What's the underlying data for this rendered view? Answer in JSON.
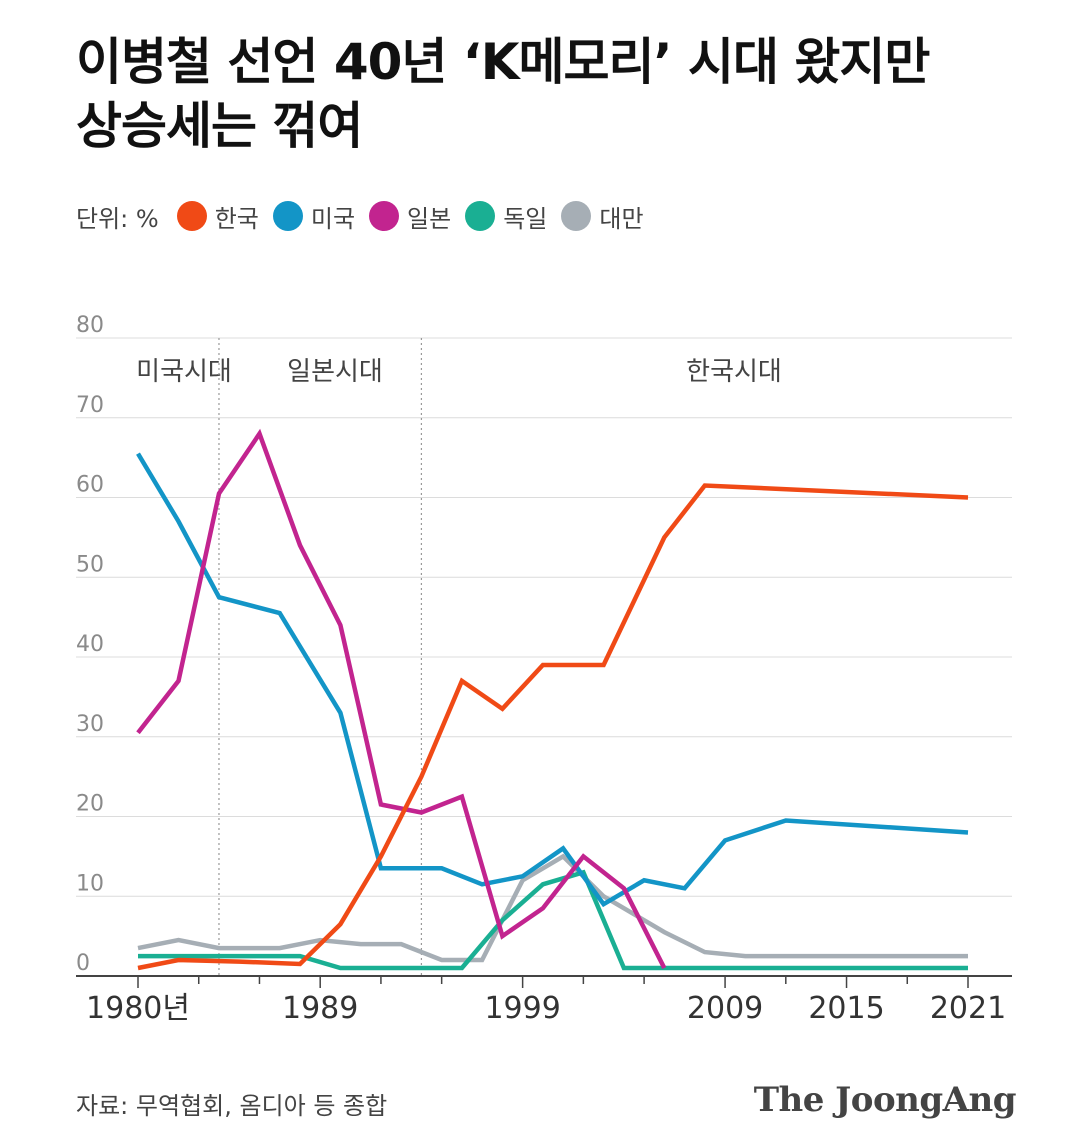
{
  "title": {
    "line1": "이병철 선언 40년 ‘K메모리’ 시대 왔지만",
    "line2": "상승세는 꺾여"
  },
  "legend": {
    "unit": "단위: %"
  },
  "source": "자료: 무역협회, 옴디아 등 종합",
  "brand": "The JoongAng",
  "chart_data": {
    "type": "line",
    "ylim": [
      0,
      80
    ],
    "yticks": [
      0,
      10,
      20,
      30,
      40,
      50,
      60,
      70,
      80
    ],
    "xlim": [
      1980,
      2021
    ],
    "xticks": [
      {
        "x": 1980,
        "label": "1980년"
      },
      {
        "x": 1989,
        "label": "1989"
      },
      {
        "x": 1999,
        "label": "1999"
      },
      {
        "x": 2009,
        "label": "2009"
      },
      {
        "x": 2015,
        "label": "2015"
      },
      {
        "x": 2021,
        "label": "2021"
      }
    ],
    "minor_ticks": [
      1983,
      1986,
      1992,
      1995,
      2002,
      2005,
      2012,
      2018
    ],
    "eras": [
      {
        "label": "미국시대",
        "from": 1980,
        "to": 1984
      },
      {
        "label": "일본시대",
        "from": 1984,
        "to": 1994
      },
      {
        "label": "한국시대",
        "from": 1994,
        "to": 2021
      }
    ],
    "grid": true,
    "legend_position": "top",
    "series": [
      {
        "name": "한국",
        "color": "#f04a16",
        "points": [
          [
            1980,
            1
          ],
          [
            1982,
            2
          ],
          [
            1985,
            1.8
          ],
          [
            1988,
            1.5
          ],
          [
            1990,
            6.5
          ],
          [
            1992,
            15
          ],
          [
            1994,
            25
          ],
          [
            1996,
            37
          ],
          [
            1998,
            33.5
          ],
          [
            2000,
            39
          ],
          [
            2003,
            39
          ],
          [
            2006,
            55
          ],
          [
            2008,
            61.5
          ],
          [
            2021,
            60
          ]
        ]
      },
      {
        "name": "미국",
        "color": "#1395c7",
        "points": [
          [
            1980,
            65.5
          ],
          [
            1982,
            57
          ],
          [
            1984,
            47.5
          ],
          [
            1987,
            45.5
          ],
          [
            1990,
            33
          ],
          [
            1992,
            13.5
          ],
          [
            1995,
            13.5
          ],
          [
            1997,
            11.5
          ],
          [
            1999,
            12.5
          ],
          [
            2001,
            16
          ],
          [
            2003,
            9
          ],
          [
            2005,
            12
          ],
          [
            2007,
            11
          ],
          [
            2009,
            17
          ],
          [
            2012,
            19.5
          ],
          [
            2021,
            18
          ]
        ]
      },
      {
        "name": "일본",
        "color": "#c2248f",
        "points": [
          [
            1980,
            30.5
          ],
          [
            1982,
            37
          ],
          [
            1984,
            60.5
          ],
          [
            1986,
            68
          ],
          [
            1988,
            54
          ],
          [
            1990,
            44
          ],
          [
            1992,
            21.5
          ],
          [
            1994,
            20.5
          ],
          [
            1996,
            22.5
          ],
          [
            1998,
            5
          ],
          [
            2000,
            8.5
          ],
          [
            2002,
            15
          ],
          [
            2004,
            11
          ],
          [
            2006,
            1
          ]
        ]
      },
      {
        "name": "독일",
        "color": "#1aaf93",
        "points": [
          [
            1980,
            2.5
          ],
          [
            1982,
            2.5
          ],
          [
            1985,
            2.5
          ],
          [
            1988,
            2.5
          ],
          [
            1990,
            1
          ],
          [
            1992,
            1
          ],
          [
            1994,
            1
          ],
          [
            1996,
            1
          ],
          [
            1998,
            7
          ],
          [
            2000,
            11.5
          ],
          [
            2002,
            13
          ],
          [
            2004,
            1
          ],
          [
            2021,
            1
          ]
        ]
      },
      {
        "name": "대만",
        "color": "#a6aeb5",
        "points": [
          [
            1980,
            3.5
          ],
          [
            1982,
            4.5
          ],
          [
            1984,
            3.5
          ],
          [
            1987,
            3.5
          ],
          [
            1989,
            4.5
          ],
          [
            1991,
            4
          ],
          [
            1993,
            4
          ],
          [
            1995,
            2
          ],
          [
            1997,
            2
          ],
          [
            1999,
            12
          ],
          [
            2001,
            15
          ],
          [
            2003,
            10
          ],
          [
            2006,
            5.5
          ],
          [
            2008,
            3
          ],
          [
            2010,
            2.5
          ],
          [
            2021,
            2.5
          ]
        ]
      }
    ]
  }
}
